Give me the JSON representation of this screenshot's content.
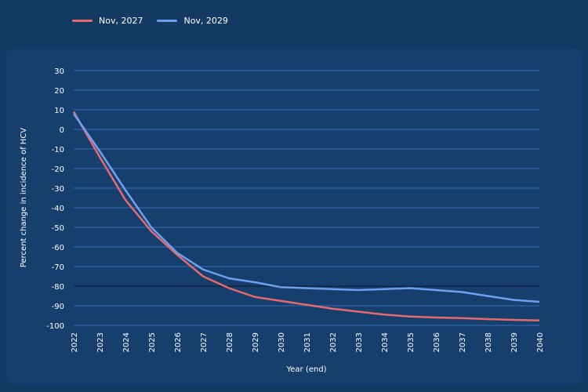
{
  "chart_data": {
    "type": "line",
    "xlabel": "Year (end)",
    "ylabel": "Percent change in incidence of HCV",
    "ylim": [
      -100,
      30
    ],
    "yticks": [
      30,
      20,
      10,
      0,
      -10,
      -20,
      -30,
      -40,
      -50,
      -60,
      -70,
      -80,
      -90,
      -100
    ],
    "x": [
      "2022",
      "2023",
      "2024",
      "2025",
      "2026",
      "2027",
      "2028",
      "2029",
      "2030",
      "2031",
      "2032",
      "2033",
      "2034",
      "2035",
      "2036",
      "2037",
      "2038",
      "2039",
      "2040"
    ],
    "grid": true,
    "legend": "top-left",
    "reference_line": -80,
    "series": [
      {
        "name": "Nov, 2027",
        "color": "#e8696b",
        "values": [
          9,
          -14,
          -36,
          -52,
          -64,
          -75,
          -81,
          -85.5,
          -87.5,
          -89.5,
          -91.5,
          -93,
          -94.5,
          -95.5,
          -96,
          -96.3,
          -96.8,
          -97.2,
          -97.5
        ]
      },
      {
        "name": "Nov, 2029",
        "color": "#6fa0f0",
        "values": [
          8,
          -11,
          -31,
          -50,
          -63,
          -71.5,
          -76,
          -78,
          -80.5,
          -81,
          -81.5,
          -82,
          -81.5,
          -81,
          -82,
          -83,
          -85,
          -87,
          -88
        ]
      }
    ]
  }
}
